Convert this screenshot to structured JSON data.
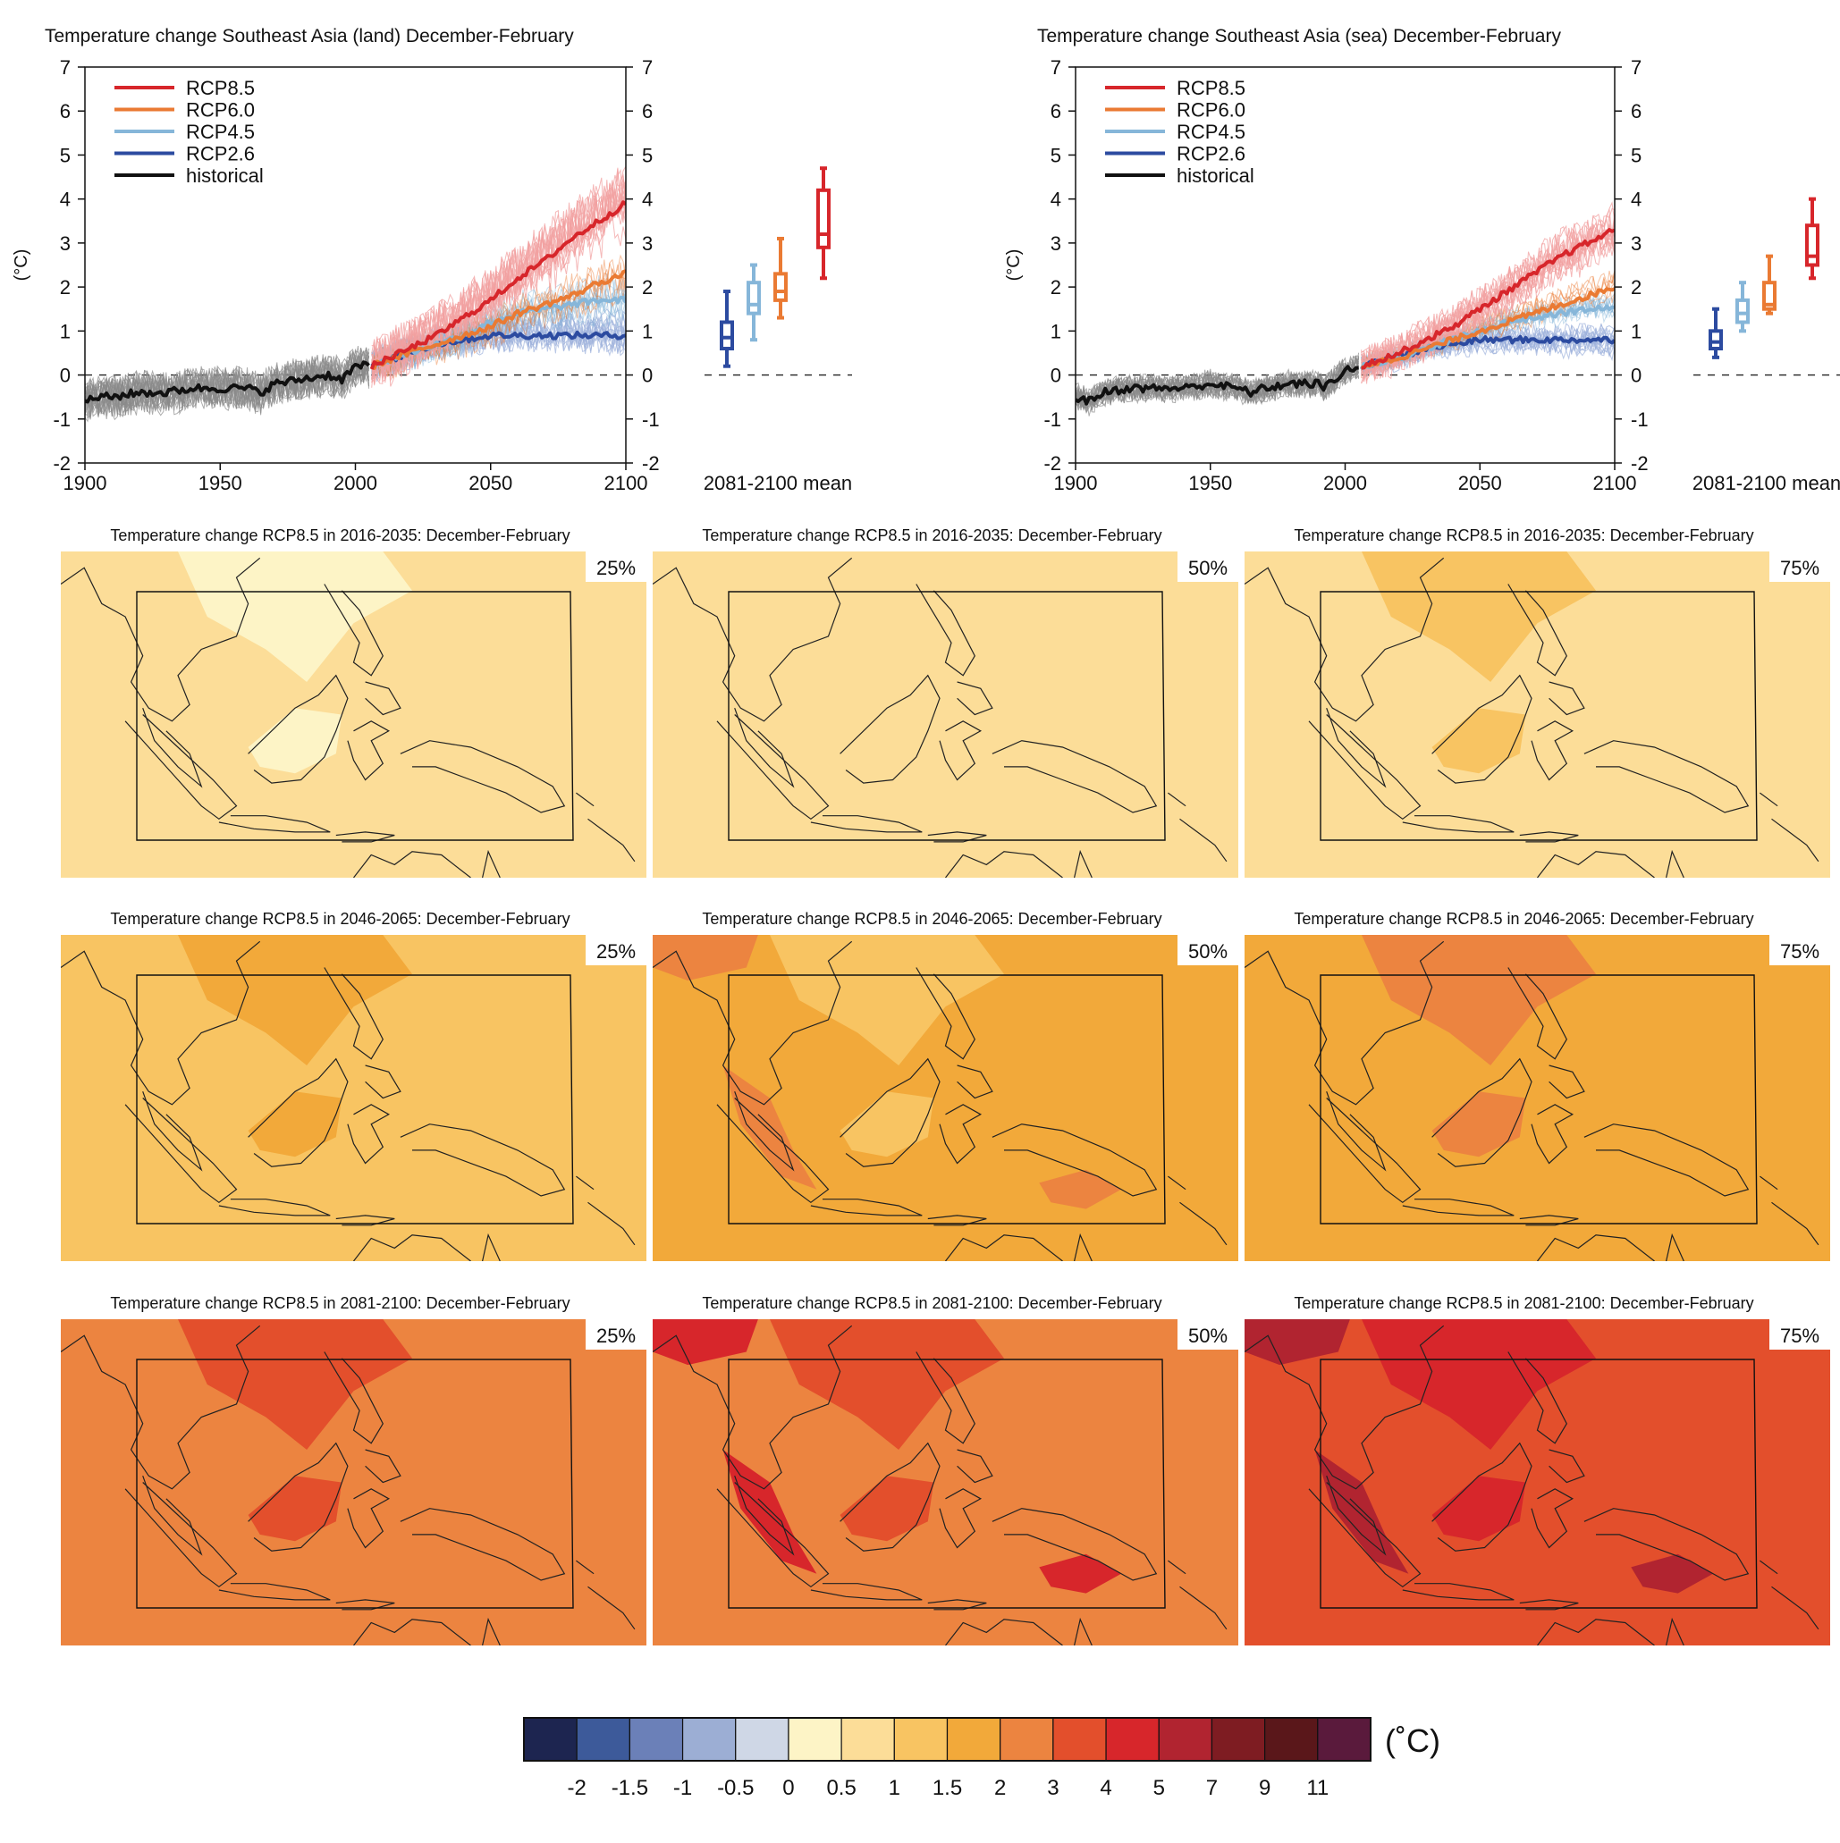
{
  "colors": {
    "rcp85": "#d7262b",
    "rcp60": "#ea7a33",
    "rcp45": "#86b6d9",
    "rcp26": "#2c4ba0",
    "historical": "#111111",
    "hist_spread": "#8a8a8a",
    "rcp85_spread": "#f2a0a0",
    "rcp26_spread": "#9db0dc"
  },
  "chart_data": [
    {
      "type": "line",
      "title": "Temperature change Southeast Asia (land) December-February",
      "ylabel": "(°C)",
      "xlim": [
        1900,
        2100
      ],
      "ylim": [
        -2,
        7
      ],
      "xticks": [
        1900,
        1950,
        2000,
        2050,
        2100
      ],
      "yticks": [
        -2,
        -1,
        0,
        1,
        2,
        3,
        4,
        5,
        6,
        7
      ],
      "legend_placement": "top-left",
      "series": [
        {
          "name": "RCP8.5",
          "key": "rcp85",
          "x": [
            2006,
            2020,
            2030,
            2040,
            2050,
            2060,
            2070,
            2080,
            2090,
            2100
          ],
          "y": [
            0.2,
            0.6,
            0.9,
            1.3,
            1.7,
            2.2,
            2.6,
            3.1,
            3.5,
            3.9
          ]
        },
        {
          "name": "RCP6.0",
          "key": "rcp60",
          "x": [
            2006,
            2020,
            2030,
            2040,
            2050,
            2060,
            2070,
            2080,
            2090,
            2100
          ],
          "y": [
            0.2,
            0.5,
            0.7,
            0.9,
            1.1,
            1.4,
            1.6,
            1.8,
            2.1,
            2.3
          ]
        },
        {
          "name": "RCP4.5",
          "key": "rcp45",
          "x": [
            2006,
            2020,
            2030,
            2040,
            2050,
            2060,
            2070,
            2080,
            2090,
            2100
          ],
          "y": [
            0.2,
            0.5,
            0.7,
            0.9,
            1.2,
            1.4,
            1.5,
            1.6,
            1.7,
            1.7
          ]
        },
        {
          "name": "RCP2.6",
          "key": "rcp26",
          "x": [
            2006,
            2020,
            2030,
            2040,
            2050,
            2060,
            2070,
            2080,
            2090,
            2100
          ],
          "y": [
            0.2,
            0.5,
            0.7,
            0.8,
            0.9,
            0.9,
            0.9,
            0.9,
            0.9,
            0.9
          ]
        },
        {
          "name": "historical",
          "key": "historical",
          "x": [
            1900,
            1905,
            1910,
            1920,
            1930,
            1940,
            1950,
            1960,
            1965,
            1970,
            1980,
            1990,
            1995,
            2000,
            2005
          ],
          "y": [
            -0.6,
            -0.5,
            -0.5,
            -0.4,
            -0.4,
            -0.3,
            -0.3,
            -0.3,
            -0.4,
            -0.2,
            -0.1,
            0.0,
            -0.1,
            0.2,
            0.2
          ]
        }
      ],
      "box_label": "2081-2100 mean",
      "boxes": [
        {
          "key": "rcp26",
          "whisker_low": 0.2,
          "q1": 0.6,
          "median": 0.85,
          "q3": 1.2,
          "whisker_high": 1.9
        },
        {
          "key": "rcp45",
          "whisker_low": 0.8,
          "q1": 1.4,
          "median": 1.6,
          "q3": 2.1,
          "whisker_high": 2.5
        },
        {
          "key": "rcp60",
          "whisker_low": 1.3,
          "q1": 1.7,
          "median": 1.9,
          "q3": 2.3,
          "whisker_high": 3.1
        },
        {
          "key": "rcp85",
          "whisker_low": 2.2,
          "q1": 2.9,
          "median": 3.2,
          "q3": 4.2,
          "whisker_high": 4.7
        }
      ]
    },
    {
      "type": "line",
      "title": "Temperature change Southeast Asia (sea) December-February",
      "ylabel": "(°C)",
      "xlim": [
        1900,
        2100
      ],
      "ylim": [
        -2,
        7
      ],
      "xticks": [
        1900,
        1950,
        2000,
        2050,
        2100
      ],
      "yticks": [
        -2,
        -1,
        0,
        1,
        2,
        3,
        4,
        5,
        6,
        7
      ],
      "legend_placement": "top-left",
      "series": [
        {
          "name": "RCP8.5",
          "key": "rcp85",
          "x": [
            2006,
            2020,
            2030,
            2040,
            2050,
            2060,
            2070,
            2080,
            2090,
            2100
          ],
          "y": [
            0.2,
            0.5,
            0.8,
            1.1,
            1.5,
            1.9,
            2.3,
            2.7,
            3.0,
            3.3
          ]
        },
        {
          "name": "RCP6.0",
          "key": "rcp60",
          "x": [
            2006,
            2020,
            2030,
            2040,
            2050,
            2060,
            2070,
            2080,
            2090,
            2100
          ],
          "y": [
            0.2,
            0.4,
            0.6,
            0.8,
            1.0,
            1.2,
            1.4,
            1.6,
            1.8,
            2.0
          ]
        },
        {
          "name": "RCP4.5",
          "key": "rcp45",
          "x": [
            2006,
            2020,
            2030,
            2040,
            2050,
            2060,
            2070,
            2080,
            2090,
            2100
          ],
          "y": [
            0.2,
            0.4,
            0.6,
            0.8,
            1.0,
            1.2,
            1.3,
            1.4,
            1.5,
            1.5
          ]
        },
        {
          "name": "RCP2.6",
          "key": "rcp26",
          "x": [
            2006,
            2020,
            2030,
            2040,
            2050,
            2060,
            2070,
            2080,
            2090,
            2100
          ],
          "y": [
            0.2,
            0.4,
            0.6,
            0.7,
            0.8,
            0.8,
            0.8,
            0.8,
            0.8,
            0.8
          ]
        },
        {
          "name": "historical",
          "key": "historical",
          "x": [
            1900,
            1905,
            1910,
            1920,
            1930,
            1940,
            1950,
            1960,
            1965,
            1970,
            1980,
            1990,
            1992,
            2000,
            2005
          ],
          "y": [
            -0.5,
            -0.6,
            -0.4,
            -0.3,
            -0.3,
            -0.3,
            -0.2,
            -0.3,
            -0.4,
            -0.3,
            -0.2,
            -0.2,
            -0.3,
            0.1,
            0.2
          ]
        }
      ],
      "box_label": "2081-2100 mean",
      "boxes": [
        {
          "key": "rcp26",
          "whisker_low": 0.4,
          "q1": 0.6,
          "median": 0.75,
          "q3": 1.0,
          "whisker_high": 1.5
        },
        {
          "key": "rcp45",
          "whisker_low": 1.0,
          "q1": 1.2,
          "median": 1.4,
          "q3": 1.7,
          "whisker_high": 2.1
        },
        {
          "key": "rcp60",
          "whisker_low": 1.4,
          "q1": 1.5,
          "median": 1.6,
          "q3": 2.1,
          "whisker_high": 2.7
        },
        {
          "key": "rcp85",
          "whisker_low": 2.2,
          "q1": 2.5,
          "median": 2.7,
          "q3": 3.4,
          "whisker_high": 4.0
        }
      ]
    },
    {
      "type": "heatmap",
      "title_rows": [
        "Temperature change RCP8.5 in 2016-2035: December-February",
        "Temperature change RCP8.5 in 2046-2065: December-February",
        "Temperature change RCP8.5 in 2081-2100: December-February"
      ],
      "percentiles": [
        "25%",
        "50%",
        "75%"
      ],
      "panels": [
        [
          {
            "base": 6,
            "patches": [
              5
            ]
          },
          {
            "base": 6,
            "patches": []
          },
          {
            "base": 6,
            "patches": [
              7
            ]
          }
        ],
        [
          {
            "base": 7,
            "patches": [
              8
            ]
          },
          {
            "base": 8,
            "patches": [
              7,
              9
            ]
          },
          {
            "base": 8,
            "patches": [
              9
            ]
          }
        ],
        [
          {
            "base": 9,
            "patches": [
              10
            ]
          },
          {
            "base": 9,
            "patches": [
              10,
              11
            ]
          },
          {
            "base": 10,
            "patches": [
              11,
              12
            ]
          }
        ]
      ]
    }
  ],
  "colorbar": {
    "unit": "(˚C)",
    "colors": [
      "#1d2550",
      "#3d5a9a",
      "#6b80b8",
      "#9caed4",
      "#cfd7e6",
      "#fdf4c6",
      "#fcdd98",
      "#f8c462",
      "#f2a93a",
      "#ec8440",
      "#e34f2c",
      "#d7262b",
      "#b12430",
      "#7e1c22",
      "#5a171a",
      "#5a1a3c"
    ],
    "tick_labels": [
      "-2",
      "-1.5",
      "-1",
      "-0.5",
      "0",
      "0.5",
      "1",
      "1.5",
      "2",
      "3",
      "4",
      "5",
      "7",
      "9",
      "11"
    ]
  }
}
